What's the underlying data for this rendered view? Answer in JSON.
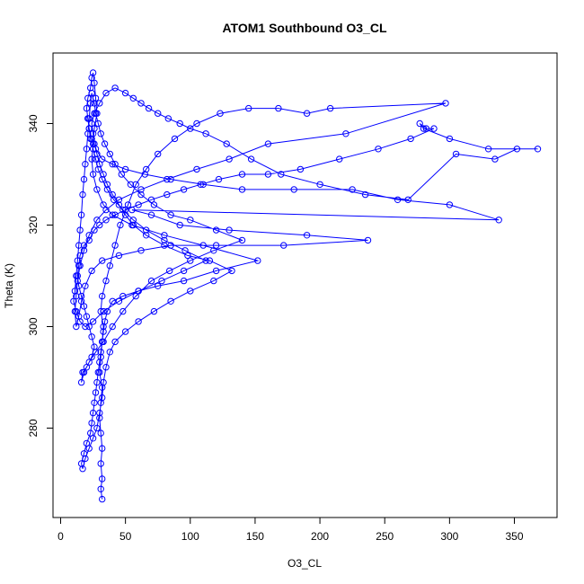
{
  "chart_data": {
    "type": "scatter",
    "mode": "lines+markers",
    "title": "ATOM1 Southbound O3_CL",
    "xlabel": "O3_CL",
    "ylabel": "Theta (K)",
    "xlim": [
      0,
      385
    ],
    "ylim": [
      262,
      355
    ],
    "xticks": [
      0,
      50,
      100,
      150,
      200,
      250,
      300,
      350
    ],
    "yticks": [
      280,
      300,
      320,
      340
    ],
    "grid": false,
    "legend": "none",
    "series": [
      {
        "color": "#0000ff",
        "marker": "open-circle",
        "points": [
          [
            32,
            266
          ],
          [
            31,
            268
          ],
          [
            32,
            270
          ],
          [
            31,
            273
          ],
          [
            32,
            276
          ],
          [
            31,
            279
          ],
          [
            30,
            282
          ],
          [
            31,
            285
          ],
          [
            32,
            288
          ],
          [
            30,
            291
          ],
          [
            31,
            294
          ],
          [
            32,
            297
          ],
          [
            33,
            300
          ],
          [
            31,
            303
          ],
          [
            32,
            306
          ],
          [
            35,
            309
          ],
          [
            38,
            312
          ],
          [
            42,
            316
          ],
          [
            46,
            320
          ],
          [
            52,
            324
          ],
          [
            58,
            328
          ],
          [
            66,
            331
          ],
          [
            75,
            334
          ],
          [
            88,
            337
          ],
          [
            105,
            340
          ],
          [
            123,
            342
          ],
          [
            145,
            343
          ],
          [
            168,
            343
          ],
          [
            190,
            342
          ],
          [
            208,
            343
          ],
          [
            297,
            344
          ],
          [
            220,
            338
          ],
          [
            160,
            336
          ],
          [
            130,
            333
          ],
          [
            105,
            331
          ],
          [
            82,
            329
          ],
          [
            62,
            327
          ],
          [
            45,
            325
          ],
          [
            35,
            323
          ],
          [
            28,
            321
          ],
          [
            22,
            318
          ],
          [
            18,
            315
          ],
          [
            15,
            312
          ],
          [
            13,
            309
          ],
          [
            12,
            306
          ],
          [
            11,
            303
          ],
          [
            12,
            300
          ],
          [
            14,
            302
          ],
          [
            16,
            305
          ],
          [
            19,
            308
          ],
          [
            24,
            311
          ],
          [
            32,
            313
          ],
          [
            45,
            314
          ],
          [
            62,
            315
          ],
          [
            85,
            316
          ],
          [
            120,
            316
          ],
          [
            172,
            316
          ],
          [
            237,
            317
          ],
          [
            190,
            318
          ],
          [
            130,
            319
          ],
          [
            92,
            320
          ],
          [
            70,
            322
          ],
          [
            55,
            323
          ],
          [
            338,
            321
          ],
          [
            300,
            324
          ],
          [
            260,
            325
          ],
          [
            225,
            327
          ],
          [
            180,
            327
          ],
          [
            140,
            327
          ],
          [
            110,
            328
          ],
          [
            85,
            329
          ],
          [
            65,
            330
          ],
          [
            50,
            331
          ],
          [
            40,
            332
          ],
          [
            32,
            333
          ],
          [
            27,
            335
          ],
          [
            24,
            337
          ],
          [
            22,
            339
          ],
          [
            21,
            341
          ],
          [
            20,
            343
          ],
          [
            21,
            345
          ],
          [
            23,
            347
          ],
          [
            24,
            349
          ],
          [
            25,
            350
          ],
          [
            26,
            348
          ],
          [
            27,
            345
          ],
          [
            28,
            342
          ],
          [
            26,
            339
          ],
          [
            25,
            336
          ],
          [
            24,
            333
          ],
          [
            25,
            330
          ],
          [
            28,
            327
          ],
          [
            33,
            324
          ],
          [
            40,
            322
          ],
          [
            55,
            320
          ],
          [
            80,
            318
          ],
          [
            110,
            316
          ],
          [
            152,
            313
          ],
          [
            120,
            311
          ],
          [
            95,
            309
          ],
          [
            75,
            308
          ],
          [
            60,
            307
          ],
          [
            48,
            306
          ],
          [
            40,
            305
          ],
          [
            36,
            303
          ],
          [
            34,
            301
          ],
          [
            33,
            299
          ],
          [
            32,
            297
          ],
          [
            31,
            295
          ],
          [
            30,
            293
          ],
          [
            29,
            291
          ],
          [
            28,
            289
          ],
          [
            27,
            287
          ],
          [
            26,
            285
          ],
          [
            25,
            283
          ],
          [
            24,
            281
          ],
          [
            23,
            279
          ],
          [
            20,
            277
          ],
          [
            18,
            275
          ],
          [
            16,
            273
          ],
          [
            17,
            272
          ],
          [
            19,
            274
          ],
          [
            22,
            276
          ],
          [
            25,
            278
          ],
          [
            28,
            280
          ],
          [
            30,
            283
          ],
          [
            32,
            286
          ],
          [
            33,
            289
          ],
          [
            35,
            292
          ],
          [
            38,
            295
          ],
          [
            42,
            297
          ],
          [
            50,
            299
          ],
          [
            60,
            301
          ],
          [
            72,
            303
          ],
          [
            85,
            305
          ],
          [
            100,
            307
          ],
          [
            118,
            309
          ],
          [
            132,
            311
          ],
          [
            115,
            313
          ],
          [
            98,
            314
          ],
          [
            80,
            316
          ],
          [
            66,
            318
          ],
          [
            56,
            320
          ],
          [
            50,
            322
          ],
          [
            45,
            324
          ],
          [
            40,
            326
          ],
          [
            36,
            328
          ],
          [
            33,
            330
          ],
          [
            30,
            332
          ],
          [
            28,
            334
          ],
          [
            26,
            336
          ],
          [
            25,
            338
          ],
          [
            24,
            340
          ],
          [
            26,
            342
          ],
          [
            30,
            344
          ],
          [
            35,
            346
          ],
          [
            42,
            347
          ],
          [
            50,
            346
          ],
          [
            56,
            345
          ],
          [
            62,
            344
          ],
          [
            68,
            343
          ],
          [
            75,
            342
          ],
          [
            83,
            341
          ],
          [
            92,
            340
          ],
          [
            100,
            339
          ],
          [
            112,
            338
          ],
          [
            128,
            336
          ],
          [
            147,
            333
          ],
          [
            170,
            330
          ],
          [
            200,
            328
          ],
          [
            235,
            326
          ],
          [
            268,
            325
          ],
          [
            305,
            334
          ],
          [
            335,
            333
          ],
          [
            352,
            335
          ],
          [
            368,
            335
          ],
          [
            330,
            335
          ],
          [
            300,
            337
          ],
          [
            280,
            339
          ],
          [
            277,
            340
          ],
          [
            282,
            339
          ],
          [
            288,
            339
          ],
          [
            270,
            337
          ],
          [
            245,
            335
          ],
          [
            215,
            333
          ],
          [
            185,
            331
          ],
          [
            160,
            330
          ],
          [
            140,
            330
          ],
          [
            122,
            329
          ],
          [
            108,
            328
          ],
          [
            95,
            327
          ],
          [
            82,
            326
          ],
          [
            70,
            325
          ],
          [
            60,
            324
          ],
          [
            50,
            323
          ],
          [
            42,
            322
          ],
          [
            35,
            321
          ],
          [
            30,
            320
          ],
          [
            26,
            319
          ],
          [
            22,
            317
          ],
          [
            18,
            316
          ],
          [
            15,
            314
          ],
          [
            14,
            312
          ],
          [
            13,
            310
          ],
          [
            14,
            308
          ],
          [
            16,
            306
          ],
          [
            18,
            304
          ],
          [
            20,
            302
          ],
          [
            22,
            300
          ],
          [
            24,
            298
          ],
          [
            26,
            296
          ],
          [
            24,
            294
          ],
          [
            20,
            292
          ],
          [
            17,
            291
          ],
          [
            16,
            289
          ],
          [
            18,
            291
          ],
          [
            22,
            293
          ],
          [
            27,
            295
          ],
          [
            33,
            297
          ],
          [
            40,
            300
          ],
          [
            48,
            303
          ],
          [
            58,
            306
          ],
          [
            70,
            309
          ],
          [
            84,
            311
          ],
          [
            100,
            313
          ],
          [
            118,
            315
          ],
          [
            140,
            317
          ],
          [
            120,
            319
          ],
          [
            100,
            321
          ],
          [
            85,
            322
          ],
          [
            72,
            324
          ],
          [
            62,
            326
          ],
          [
            54,
            328
          ],
          [
            47,
            330
          ],
          [
            42,
            332
          ],
          [
            38,
            334
          ],
          [
            34,
            336
          ],
          [
            31,
            338
          ],
          [
            29,
            340
          ],
          [
            27,
            342
          ],
          [
            26,
            344
          ],
          [
            24,
            346
          ],
          [
            23,
            344
          ],
          [
            22,
            341
          ],
          [
            21,
            338
          ],
          [
            20,
            335
          ],
          [
            19,
            332
          ],
          [
            18,
            329
          ],
          [
            17,
            326
          ],
          [
            16,
            322
          ],
          [
            15,
            319
          ],
          [
            14,
            316
          ],
          [
            13,
            313
          ],
          [
            12,
            310
          ],
          [
            11,
            307
          ],
          [
            10,
            305
          ],
          [
            12,
            303
          ],
          [
            15,
            301
          ],
          [
            19,
            300
          ],
          [
            25,
            301
          ],
          [
            33,
            303
          ],
          [
            45,
            305
          ],
          [
            60,
            307
          ],
          [
            78,
            309
          ],
          [
            95,
            311
          ],
          [
            112,
            313
          ],
          [
            96,
            315
          ],
          [
            80,
            317
          ],
          [
            66,
            319
          ],
          [
            56,
            321
          ],
          [
            48,
            323
          ],
          [
            41,
            325
          ],
          [
            36,
            327
          ],
          [
            32,
            329
          ],
          [
            29,
            331
          ],
          [
            27,
            333
          ],
          [
            25,
            335
          ],
          [
            23,
            337
          ],
          [
            22,
            339
          ],
          [
            21,
            341
          ]
        ]
      }
    ]
  }
}
